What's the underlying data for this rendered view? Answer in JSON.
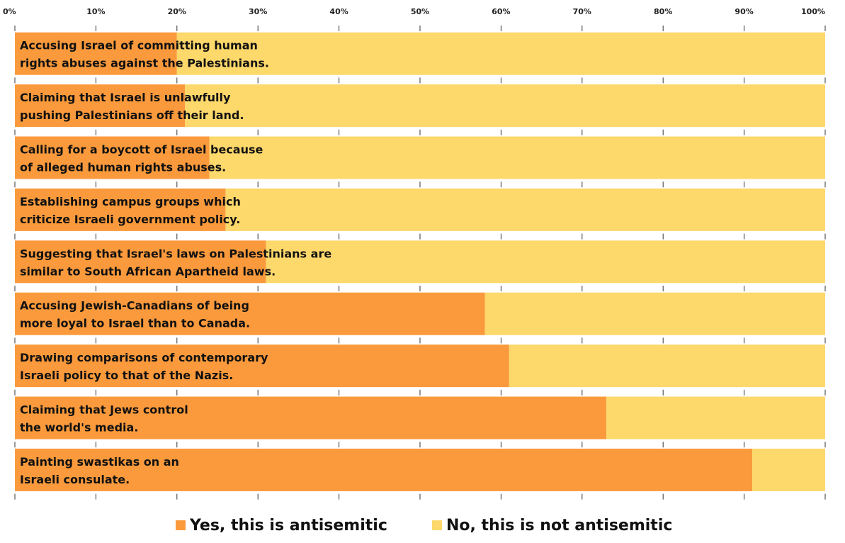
{
  "chart_data": {
    "type": "bar",
    "orientation": "horizontal",
    "stacked": true,
    "percent_stacked": true,
    "xlim": [
      0,
      100
    ],
    "x_ticks": [
      "0%",
      "10%",
      "20%",
      "30%",
      "40%",
      "50%",
      "60%",
      "70%",
      "80%",
      "90%",
      "100%"
    ],
    "x_axis_position": "top",
    "grid": false,
    "legend_position": "bottom",
    "categories": [
      [
        "Accusing Israel of committing human",
        "rights abuses against the Palestinians."
      ],
      [
        "Claiming that Israel is unlawfully",
        "pushing Palestinians off their land."
      ],
      [
        "Calling for a boycott of Israel because",
        "of alleged human rights abuses."
      ],
      [
        "Establishing campus groups which",
        "criticize Israeli government policy."
      ],
      [
        "Suggesting that Israel's laws on Palestinians are",
        "similar to South African Apartheid laws."
      ],
      [
        "Accusing Jewish-Canadians of being",
        "more loyal to Israel than to Canada."
      ],
      [
        "Drawing comparisons of contemporary",
        "Israeli policy to that of the Nazis."
      ],
      [
        "Claiming that Jews control",
        "the world's media."
      ],
      [
        "Painting swastikas on an",
        "Israeli consulate."
      ]
    ],
    "series": [
      {
        "name": "Yes, this is antisemitic",
        "color": "#fb9a3c",
        "values": [
          20,
          21,
          24,
          26,
          31,
          58,
          61,
          73,
          91
        ]
      },
      {
        "name": "No, this is not antisemitic",
        "color": "#fdd86b",
        "values": [
          80,
          79,
          76,
          74,
          69,
          42,
          39,
          27,
          9
        ]
      }
    ]
  }
}
